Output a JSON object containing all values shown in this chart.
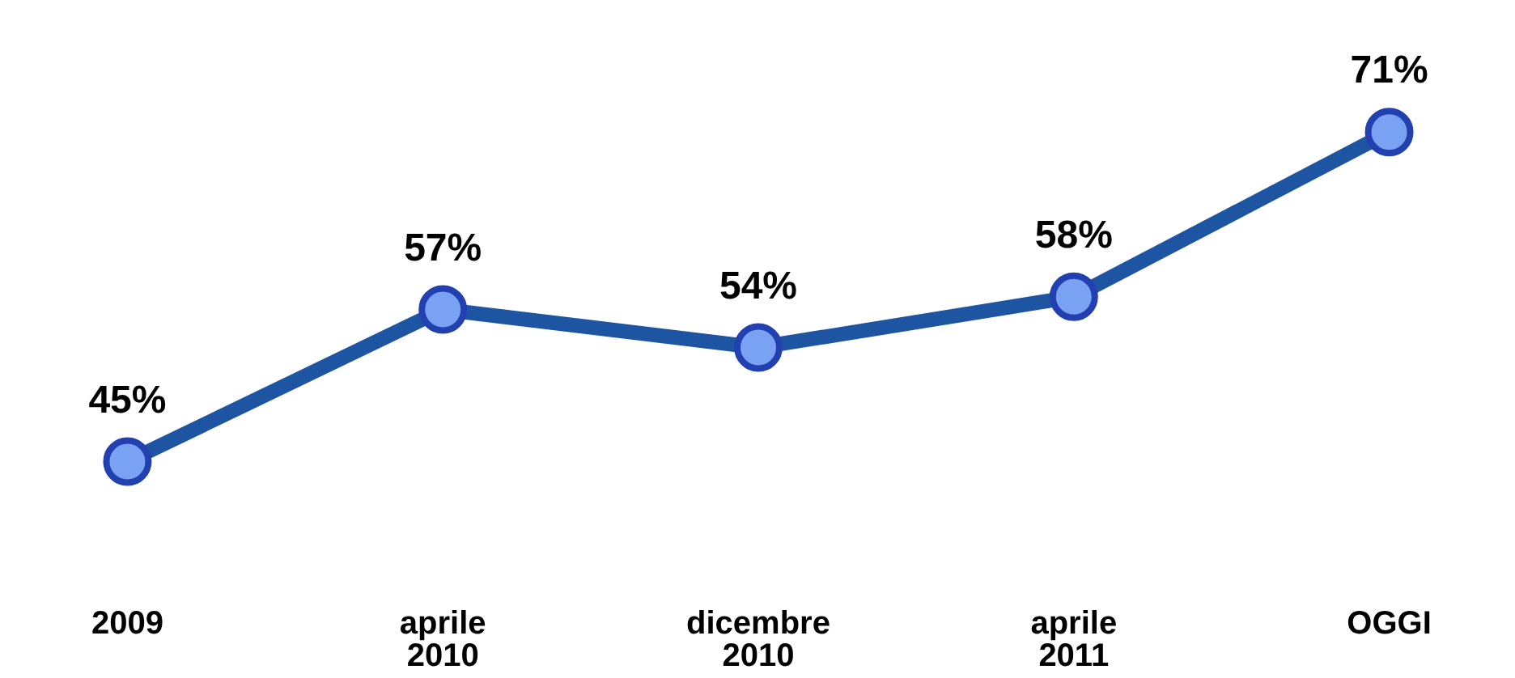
{
  "chart_data": {
    "type": "line",
    "categories": [
      "2009",
      "aprile\n2010",
      "dicembre\n2010",
      "aprile\n2011",
      "OGGI"
    ],
    "series": [
      {
        "color": "#1d55a3",
        "values": [
          45,
          57,
          54,
          58,
          71
        ],
        "value_labels": [
          "45%",
          "57%",
          "54%",
          "58%",
          "71%"
        ]
      }
    ],
    "marker": "circle",
    "line_style": "solid"
  }
}
